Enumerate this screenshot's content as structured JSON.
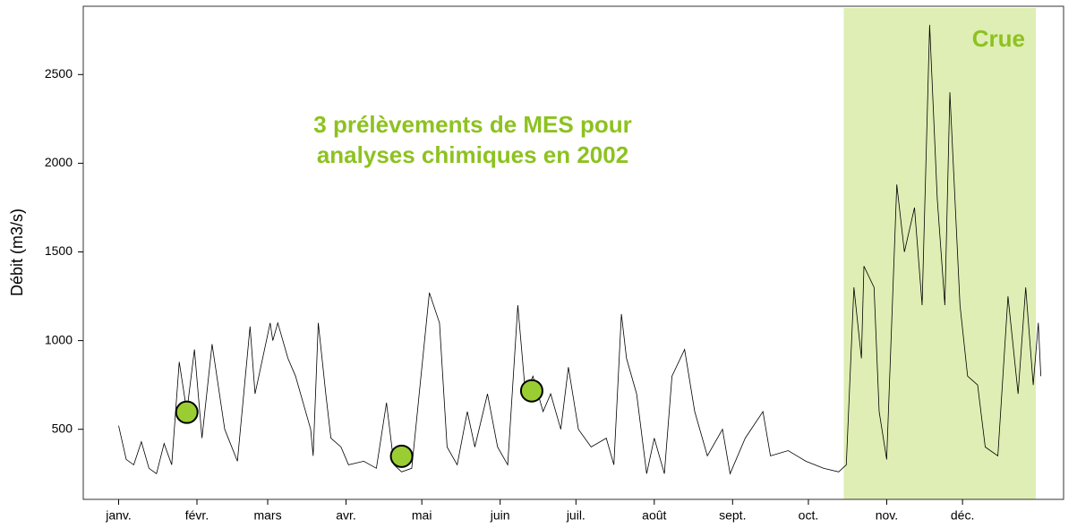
{
  "chart_data": {
    "type": "line",
    "ylabel": "Débit (m3/s)",
    "annotation": [
      "3 prélèvements de MES pour",
      "analyses chimiques en 2002"
    ],
    "annotation_color": "#8dc21f",
    "shaded_region": {
      "x": [
        287,
        363
      ],
      "label": "Crue",
      "color": "#dfeeb4",
      "label_color": "#8dc21f"
    },
    "x": [
      0,
      3,
      6,
      9,
      12,
      15,
      18,
      21,
      24,
      27,
      30,
      33,
      37,
      42,
      47,
      52,
      54,
      60,
      61,
      63,
      67,
      70,
      76,
      77,
      79,
      82,
      84,
      88,
      91,
      97,
      102,
      106,
      109,
      112,
      116,
      123,
      127,
      130,
      134,
      138,
      141,
      146,
      150,
      154,
      158,
      161,
      164,
      168,
      171,
      175,
      178,
      182,
      187,
      193,
      196,
      199,
      201,
      205,
      209,
      212,
      216,
      219,
      224,
      228,
      233,
      239,
      242,
      248,
      255,
      258,
      265,
      272,
      279,
      285,
      288,
      291,
      294,
      295,
      299,
      301,
      304,
      308,
      311,
      315,
      318,
      321,
      324,
      327,
      329,
      333,
      336,
      340,
      343,
      348,
      352,
      356,
      359,
      362,
      364,
      365
    ],
    "values": [
      520,
      330,
      300,
      430,
      280,
      250,
      420,
      300,
      880,
      600,
      950,
      450,
      980,
      500,
      320,
      1080,
      700,
      1100,
      1000,
      1100,
      900,
      800,
      500,
      350,
      1100,
      700,
      450,
      400,
      300,
      320,
      280,
      650,
      300,
      260,
      280,
      1270,
      1100,
      400,
      300,
      600,
      400,
      700,
      400,
      300,
      1200,
      700,
      800,
      600,
      700,
      500,
      850,
      500,
      400,
      450,
      300,
      1150,
      900,
      700,
      250,
      450,
      250,
      800,
      950,
      600,
      350,
      500,
      250,
      450,
      600,
      350,
      380,
      320,
      280,
      260,
      300,
      1300,
      900,
      1420,
      1300,
      600,
      330,
      1880,
      1500,
      1750,
      1200,
      2780,
      1800,
      1200,
      2400,
      1200,
      800,
      750,
      400,
      350,
      1250,
      700,
      1300,
      750,
      1100,
      800
    ],
    "color": "#000000",
    "markers": {
      "x": [
        27,
        112,
        163.5
      ],
      "values": [
        596,
        348,
        717
      ],
      "color": "#9acd32"
    },
    "xlim": [
      -14,
      374
    ],
    "xticks": [
      {
        "value": 0,
        "label": "janv."
      },
      {
        "value": 31,
        "label": "févr."
      },
      {
        "value": 59,
        "label": "mars"
      },
      {
        "value": 90,
        "label": "avr."
      },
      {
        "value": 120,
        "label": "mai"
      },
      {
        "value": 151,
        "label": "juin"
      },
      {
        "value": 181,
        "label": "juil."
      },
      {
        "value": 212,
        "label": "août"
      },
      {
        "value": 243,
        "label": "sept."
      },
      {
        "value": 273,
        "label": "oct."
      },
      {
        "value": 304,
        "label": "nov."
      },
      {
        "value": 334,
        "label": "déc."
      }
    ],
    "ylim": [
      105,
      2885
    ],
    "yticks": [
      500,
      1000,
      1500,
      2000,
      2500
    ]
  }
}
